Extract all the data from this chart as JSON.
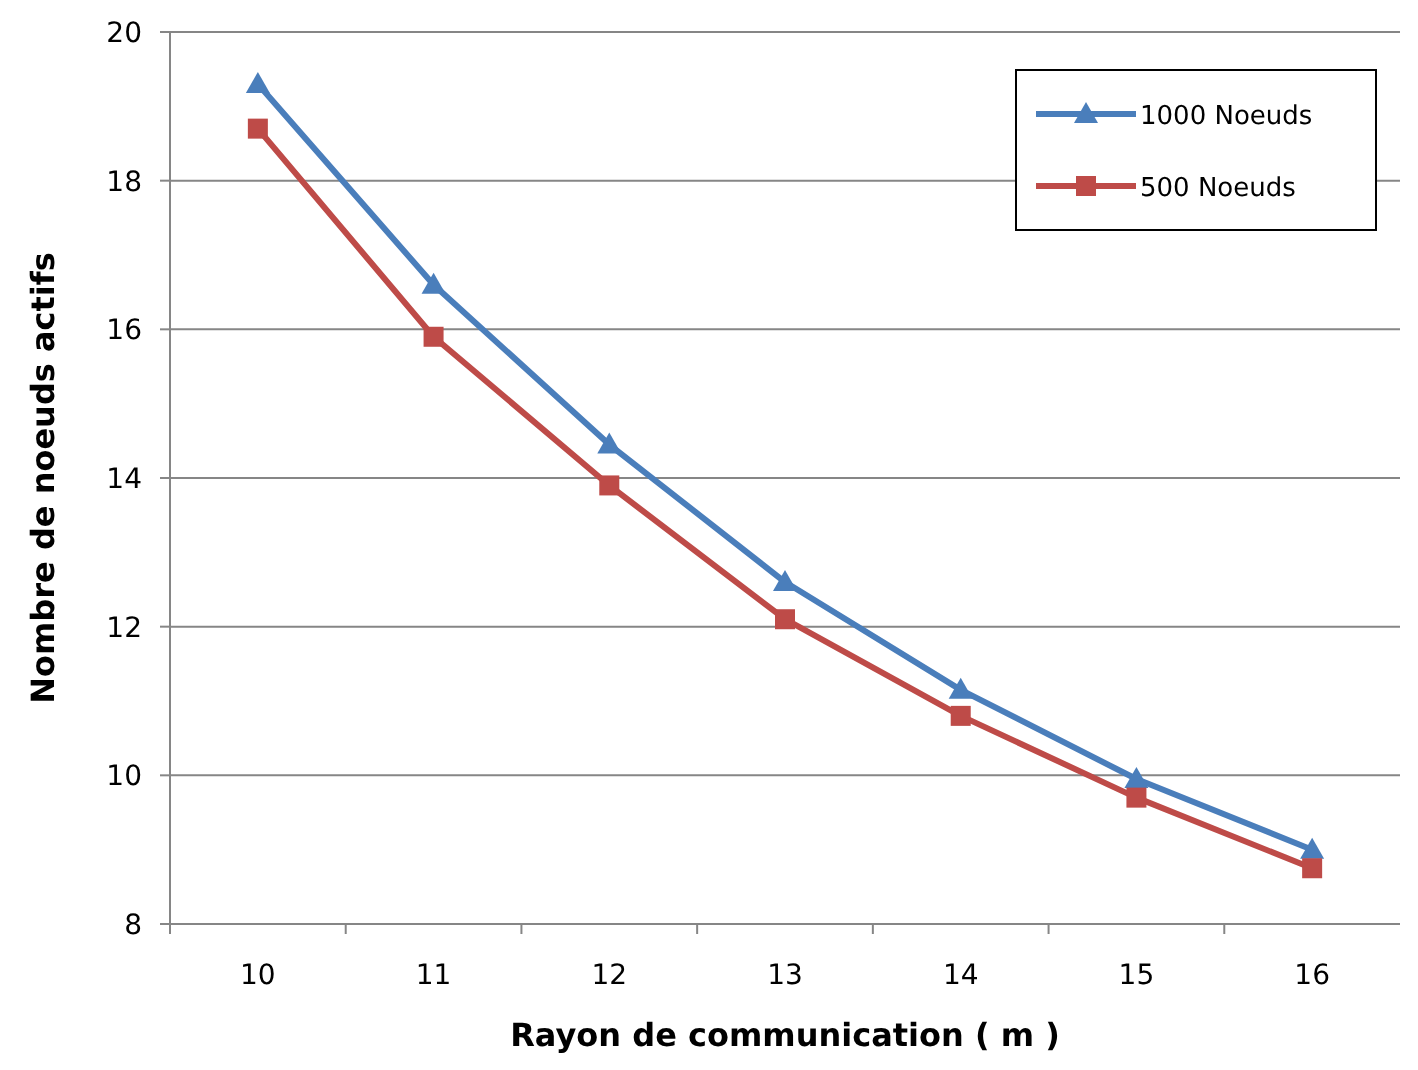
{
  "chart_data": {
    "type": "line",
    "xlabel": "Rayon de communication ( m )",
    "ylabel": "Nombre de noeuds actifs",
    "categories": [
      "10",
      "11",
      "12",
      "13",
      "14",
      "15",
      "16"
    ],
    "series": [
      {
        "name": "1000 Noeuds",
        "color": "#4a7ebb",
        "marker": "triangle",
        "values": [
          19.3,
          16.6,
          14.45,
          12.6,
          11.15,
          9.95,
          9.0
        ]
      },
      {
        "name": "500 Noeuds",
        "color": "#be4b48",
        "marker": "square",
        "values": [
          18.7,
          15.9,
          13.9,
          12.1,
          10.8,
          9.7,
          8.75
        ]
      }
    ],
    "ylim": [
      8,
      20
    ],
    "yticks": [
      8,
      10,
      12,
      14,
      16,
      18,
      20
    ],
    "grid": "y",
    "legend": "top right"
  }
}
